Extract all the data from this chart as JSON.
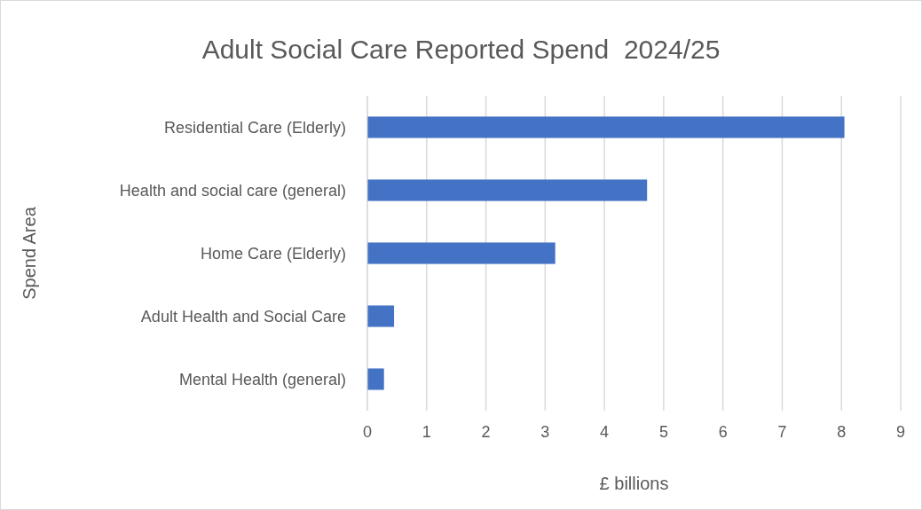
{
  "chart_data": {
    "type": "bar",
    "orientation": "horizontal",
    "title": "Adult Social Care Reported Spend  2024/25",
    "xlabel": "£ billions",
    "ylabel": "Spend Area",
    "categories": [
      "Residential Care (Elderly)",
      "Health and social care (general)",
      "Home Care (Elderly)",
      "Adult Health and Social Care",
      "Mental Health (general)"
    ],
    "values": [
      8.05,
      4.72,
      3.17,
      0.45,
      0.28
    ],
    "color": "#4472c4",
    "xlim": [
      0,
      9
    ],
    "xticks": [
      0,
      1,
      2,
      3,
      4,
      5,
      6,
      7,
      8,
      9
    ],
    "grid": "x"
  }
}
